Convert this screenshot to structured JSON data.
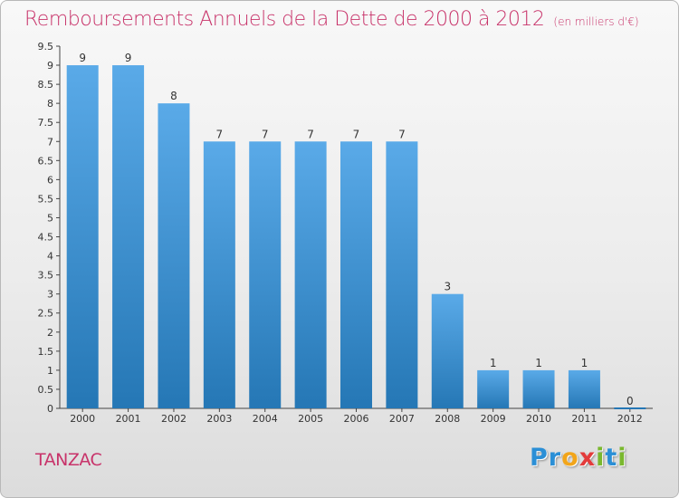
{
  "header": {
    "title": "Remboursements Annuels de la Dette de 2000 à 2012",
    "unit": "(en milliers d'€)"
  },
  "footer": {
    "commune": "TANZAC",
    "logo_letters": [
      {
        "ch": "P",
        "color": "#2b8fd6"
      },
      {
        "ch": "r",
        "color": "#2b8fd6"
      },
      {
        "ch": "o",
        "color": "#f2a51a"
      },
      {
        "ch": "x",
        "color": "#e33b3b"
      },
      {
        "ch": "i",
        "color": "#7ab82e"
      },
      {
        "ch": "t",
        "color": "#2b8fd6"
      },
      {
        "ch": "i",
        "color": "#7ab82e"
      }
    ]
  },
  "colors": {
    "bar_light": "#5aaae8",
    "bar_dark": "#2577b5",
    "title": "#c8336a"
  },
  "chart_data": {
    "type": "bar",
    "categories": [
      "2000",
      "2001",
      "2002",
      "2003",
      "2004",
      "2005",
      "2006",
      "2007",
      "2008",
      "2009",
      "2010",
      "2011",
      "2012"
    ],
    "values": [
      9,
      9,
      8,
      7,
      7,
      7,
      7,
      7,
      3,
      1,
      1,
      1,
      0
    ],
    "value_labels": [
      "9",
      "9",
      "8",
      "7",
      "7",
      "7",
      "7",
      "7",
      "3",
      "1",
      "1",
      "1",
      "0"
    ],
    "yticks": [
      "0",
      "0.5",
      "1",
      "1.5",
      "2",
      "2.5",
      "3",
      "3.5",
      "4",
      "4.5",
      "5",
      "5.5",
      "6",
      "6.5",
      "7",
      "7.5",
      "8",
      "8.5",
      "9",
      "9.5"
    ],
    "ylim": [
      0,
      9.5
    ],
    "grid": false
  }
}
